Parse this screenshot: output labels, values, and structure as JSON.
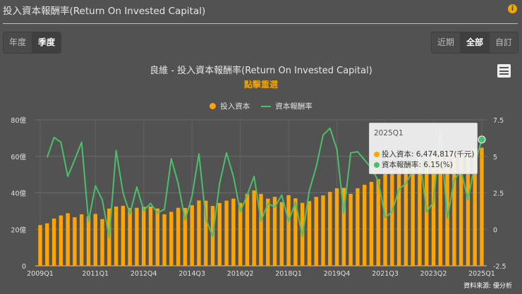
{
  "header": {
    "title": "投入資本報酬率(Return On Invested Capital)",
    "info_icon": "info-icon"
  },
  "period_buttons": [
    {
      "label": "年度",
      "active": false
    },
    {
      "label": "季度",
      "active": true
    }
  ],
  "range_buttons": [
    {
      "label": "近期",
      "active": false
    },
    {
      "label": "全部",
      "active": true
    },
    {
      "label": "自訂",
      "active": false
    }
  ],
  "source": "資料來源: 優分析",
  "tooltip": {
    "title": "2025Q1",
    "rows": [
      "投入資本: 6,474,817(千元)",
      "資本報酬率: 6.15(%)"
    ]
  },
  "colors": {
    "bar": "#ffa500",
    "line": "#4cbf6b",
    "background": "#525252"
  },
  "chart_data": {
    "type": "bar+line",
    "title": "良維 - 投入資本報酬率(Return On Invested Capital)",
    "subtitle": "點擊重選",
    "legend_position": "top",
    "grid": true,
    "categories": [
      "2009Q1",
      "2009Q2",
      "2009Q3",
      "2009Q4",
      "2010Q1",
      "2010Q2",
      "2010Q3",
      "2010Q4",
      "2011Q1",
      "2011Q2",
      "2011Q3",
      "2011Q4",
      "2012Q1",
      "2012Q2",
      "2012Q3",
      "2012Q4",
      "2013Q1",
      "2013Q2",
      "2013Q3",
      "2013Q4",
      "2014Q1",
      "2014Q2",
      "2014Q3",
      "2014Q4",
      "2015Q1",
      "2015Q2",
      "2015Q3",
      "2015Q4",
      "2016Q1",
      "2016Q2",
      "2016Q3",
      "2016Q4",
      "2017Q1",
      "2017Q2",
      "2017Q3",
      "2017Q4",
      "2018Q1",
      "2018Q2",
      "2018Q3",
      "2018Q4",
      "2019Q1",
      "2019Q2",
      "2019Q3",
      "2019Q4",
      "2020Q1",
      "2020Q2",
      "2020Q3",
      "2020Q4",
      "2021Q1",
      "2021Q2",
      "2021Q3",
      "2021Q4",
      "2022Q1",
      "2022Q2",
      "2022Q3",
      "2022Q4",
      "2023Q1",
      "2023Q2",
      "2023Q3",
      "2023Q4",
      "2024Q1",
      "2024Q2",
      "2024Q3",
      "2024Q4",
      "2025Q1"
    ],
    "x_tick_labels": [
      "2009Q1",
      "2011Q1",
      "2012Q4",
      "2014Q3",
      "2016Q2",
      "2018Q1",
      "2019Q4",
      "2021Q3",
      "2023Q2",
      "2025Q1"
    ],
    "y_left": {
      "range": [
        0,
        80
      ],
      "ticks": [
        "0",
        "20億",
        "40億",
        "60億",
        "80億"
      ],
      "tick_values": [
        0,
        20,
        40,
        60,
        80
      ]
    },
    "y_right": {
      "range": [
        -2.5,
        7.5
      ],
      "ticks": [
        "-2.5",
        "0",
        "2.5",
        "5",
        "7.5"
      ],
      "tick_values": [
        -2.5,
        0,
        2.5,
        5,
        7.5
      ]
    },
    "series": [
      {
        "name": "投入資本",
        "type": "bar",
        "unit": "億",
        "values": [
          22.3,
          23.3,
          25.9,
          27.6,
          28.8,
          26.6,
          28.2,
          27.1,
          28.4,
          25.6,
          31.4,
          32.5,
          32.9,
          31.7,
          31.8,
          32.3,
          32.5,
          31.4,
          28.2,
          29.6,
          31.8,
          31.7,
          33.2,
          35.8,
          35.7,
          32.8,
          34.4,
          35.7,
          36.8,
          34.5,
          39.4,
          41.3,
          39.4,
          36.8,
          37.8,
          34.9,
          38.7,
          37,
          34.5,
          35.5,
          37.8,
          38.6,
          40.5,
          42.5,
          42.7,
          39.4,
          42.5,
          44.4,
          46,
          47.5,
          51,
          52.5,
          54,
          55.5,
          57,
          58,
          59,
          60.5,
          61.5,
          62,
          63,
          63.5,
          64,
          64.3,
          64.7
        ]
      },
      {
        "name": "資本報酬率",
        "type": "line",
        "unit": "%",
        "values": [
          null,
          4.92,
          6.29,
          5.97,
          3.63,
          4.76,
          5.97,
          0.56,
          2.98,
          2.02,
          -0.56,
          5.4,
          2.5,
          1.05,
          2.9,
          1.29,
          1.77,
          1.13,
          1.37,
          4.84,
          3.14,
          0.64,
          2.26,
          5.16,
          0.73,
          -0.48,
          3.14,
          5.24,
          3.63,
          1.21,
          2.34,
          3.63,
          0.56,
          1.77,
          1.53,
          2.34,
          0.56,
          1.85,
          -0.48,
          2.66,
          4.27,
          6.45,
          6.93,
          5.48,
          1.13,
          5.24,
          5.32,
          4.76,
          4.19,
          3.31,
          0.8,
          1.21,
          2.74,
          3.14,
          4.03,
          5.0,
          1.21,
          1.85,
          6.8,
          0.73,
          3.4,
          4.0,
          2.03,
          4.5,
          6.15
        ]
      }
    ]
  }
}
